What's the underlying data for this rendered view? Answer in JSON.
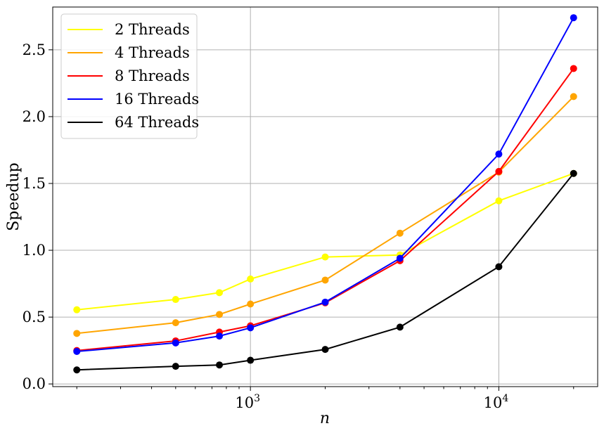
{
  "chart_data": {
    "type": "line",
    "title": "",
    "xlabel": "n",
    "ylabel": "Speedup",
    "xscale": "log",
    "xlim": [
      160,
      25000
    ],
    "ylim": [
      -0.02,
      2.82
    ],
    "grid": true,
    "legend_position": "top-left",
    "x": [
      200,
      500,
      750,
      1000,
      2000,
      4000,
      10000,
      20000
    ],
    "x_tick_values": [
      1000,
      10000
    ],
    "x_tick_labels": [
      {
        "base": "10",
        "exp": "3"
      },
      {
        "base": "10",
        "exp": "4"
      }
    ],
    "y_tick_values": [
      0.0,
      0.5,
      1.0,
      1.5,
      2.0,
      2.5
    ],
    "y_tick_labels": [
      "0.0",
      "0.5",
      "1.0",
      "1.5",
      "2.0",
      "2.5"
    ],
    "series": [
      {
        "name": "2 Threads",
        "color": "#ffff00",
        "values": [
          0.555,
          0.632,
          0.683,
          0.785,
          0.95,
          0.965,
          1.37,
          1.575
        ]
      },
      {
        "name": "4 Threads",
        "color": "#ffa500",
        "values": [
          0.378,
          0.458,
          0.52,
          0.598,
          0.777,
          1.128,
          1.585,
          2.15
        ]
      },
      {
        "name": "8 Threads",
        "color": "#ff0000",
        "values": [
          0.25,
          0.322,
          0.388,
          0.435,
          0.607,
          0.922,
          1.59,
          2.36
        ]
      },
      {
        "name": "16 Threads",
        "color": "#0000ff",
        "values": [
          0.243,
          0.307,
          0.358,
          0.42,
          0.612,
          0.94,
          1.72,
          2.74
        ]
      },
      {
        "name": "64 Threads",
        "color": "#000000",
        "values": [
          0.105,
          0.132,
          0.142,
          0.177,
          0.258,
          0.425,
          0.877,
          1.575
        ]
      }
    ]
  }
}
